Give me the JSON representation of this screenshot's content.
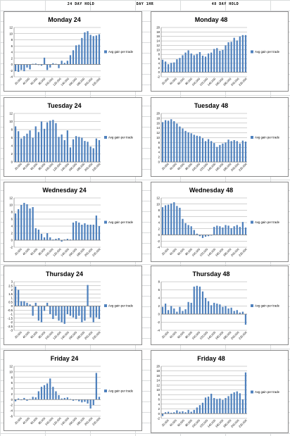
{
  "headers": [
    "24 DAY HOLD",
    "DAY 1HR",
    "48 DAY HOLD"
  ],
  "colors": {
    "bar": "#4f81bd",
    "grid": "#a6a6a6",
    "axis": "#808080",
    "text": "#000000"
  },
  "chart_data": [
    {
      "type": "bar",
      "title": "Monday 24",
      "legend": "Avg gain per trade",
      "legend_position": "right",
      "ylim": [
        -4,
        12
      ],
      "ytick_step": 2,
      "grid": true,
      "xticks": [
        "20,000",
        "40,000",
        "60,000",
        "80,000",
        "100,000",
        "120,000",
        "140,000",
        "160,000",
        "180,000",
        "200,000",
        "220,000"
      ],
      "values": [
        -2.2,
        -2.4,
        -1.8,
        -2.2,
        -1.0,
        -1.6,
        0.2,
        0.3,
        -0.2,
        -0.4,
        2.2,
        -1.8,
        -1.0,
        0.4,
        0.2,
        -1.2,
        1.2,
        0.5,
        1.2,
        3.0,
        4.6,
        6.2,
        6.4,
        8.6,
        10.4,
        10.8,
        9.6,
        9.2,
        9.4,
        9.8
      ]
    },
    {
      "type": "bar",
      "title": "Monday 48",
      "legend": "Avg gain per trade",
      "legend_position": "right",
      "ylim": [
        -2,
        20
      ],
      "ytick_step": 2,
      "grid": true,
      "xticks": [
        "20,000",
        "40,000",
        "60,000",
        "80,000",
        "100,000",
        "120,000",
        "140,000",
        "160,000",
        "180,000",
        "200,000",
        "220,000"
      ],
      "values": [
        5.6,
        4.8,
        3.6,
        4.2,
        4.4,
        5.8,
        6.4,
        7.6,
        8.8,
        9.8,
        8.4,
        7.6,
        8.2,
        9.0,
        7.4,
        7.0,
        8.4,
        8.8,
        10.4,
        10.8,
        9.6,
        10.0,
        12.0,
        13.4,
        13.6,
        15.4,
        14.2,
        16.0,
        16.6,
        16.6
      ]
    },
    {
      "type": "bar",
      "title": "Tuesday 24",
      "legend": "Avg gain per trade",
      "legend_position": "right",
      "ylim": [
        0,
        12
      ],
      "ytick_step": 2,
      "grid": true,
      "xticks": [
        "20,000",
        "40,000",
        "60,000",
        "80,000",
        "100,000",
        "120,000",
        "140,000",
        "160,000",
        "180,000",
        "200,000",
        "220,000"
      ],
      "values": [
        8.8,
        7.6,
        5.8,
        6.4,
        7.0,
        7.8,
        6.0,
        8.8,
        7.4,
        10.0,
        8.2,
        9.8,
        10.2,
        10.4,
        9.6,
        6.2,
        6.8,
        5.4,
        7.8,
        3.6,
        5.6,
        6.4,
        6.2,
        6.0,
        5.2,
        5.0,
        3.8,
        3.4,
        5.8,
        5.4
      ]
    },
    {
      "type": "bar",
      "title": "Tuesday 48",
      "legend": "Avg gain per trade",
      "legend_position": "right",
      "ylim": [
        0,
        20
      ],
      "ytick_step": 2,
      "grid": true,
      "xticks": [
        "20,000",
        "40,000",
        "60,000",
        "80,000",
        "100,000",
        "120,000",
        "140,000",
        "160,000",
        "180,000",
        "200,000",
        "220,000"
      ],
      "values": [
        16.4,
        17.2,
        17.0,
        17.6,
        16.8,
        15.8,
        14.6,
        13.8,
        12.8,
        12.2,
        11.8,
        11.2,
        10.8,
        10.6,
        9.8,
        8.6,
        9.4,
        8.6,
        7.8,
        6.2,
        7.0,
        7.6,
        8.0,
        9.2,
        8.6,
        9.0,
        8.6,
        7.6,
        8.8,
        8.4
      ]
    },
    {
      "type": "bar",
      "title": "Wednesday 24",
      "legend": "Avg gain per trade",
      "legend_position": "right",
      "ylim": [
        -2,
        12
      ],
      "ytick_step": 2,
      "grid": true,
      "xticks": [
        "20,000",
        "40,000",
        "60,000",
        "80,000",
        "100,000",
        "120,000",
        "140,000",
        "160,000",
        "180,000",
        "200,000",
        "220,000"
      ],
      "values": [
        7.6,
        8.8,
        10.0,
        10.6,
        10.2,
        9.0,
        9.4,
        3.4,
        3.0,
        1.8,
        0.8,
        2.0,
        0.8,
        0.2,
        0.4,
        0.6,
        -0.4,
        0.2,
        0.4,
        0.2,
        5.0,
        5.4,
        5.0,
        4.4,
        4.8,
        4.4,
        4.4,
        4.4,
        7.0,
        4.0
      ]
    },
    {
      "type": "bar",
      "title": "Wednesday 48",
      "legend": "Avg gain per trade",
      "legend_position": "right",
      "ylim": [
        -4,
        12
      ],
      "ytick_step": 2,
      "grid": true,
      "xticks": [
        "20,000",
        "40,000",
        "60,000",
        "80,000",
        "100,000",
        "120,000",
        "140,000",
        "160,000",
        "180,000",
        "200,000",
        "220,000"
      ],
      "values": [
        9.0,
        9.6,
        9.8,
        10.2,
        10.6,
        9.4,
        8.8,
        5.2,
        3.8,
        3.2,
        2.8,
        1.6,
        0.4,
        -0.4,
        -1.0,
        -0.6,
        -0.4,
        -0.2,
        2.6,
        3.0,
        2.8,
        2.4,
        3.2,
        3.0,
        2.2,
        2.8,
        3.2,
        2.6,
        4.2,
        2.4
      ]
    },
    {
      "type": "bar",
      "title": "Thursday 24",
      "legend": "Avg gain per trade",
      "legend_position": "right",
      "ylim": [
        -3,
        3
      ],
      "ytick_step": 0.5,
      "grid": true,
      "xticks": [
        "20,000",
        "40,000",
        "60,000",
        "80,000",
        "100,000",
        "120,000",
        "140,000",
        "160,000",
        "180,000",
        "200,000",
        "220,000"
      ],
      "values": [
        2.4,
        2.0,
        0.6,
        0.6,
        0.4,
        0.2,
        -1.2,
        0.4,
        -1.8,
        -2.0,
        -0.6,
        0.4,
        -1.0,
        -1.6,
        -1.2,
        -1.8,
        -2.0,
        -2.2,
        -1.0,
        -1.2,
        -1.4,
        -1.6,
        -1.2,
        -2.0,
        -1.8,
        2.6,
        -1.4,
        -2.0,
        -1.4,
        -1.6
      ]
    },
    {
      "type": "bar",
      "title": "Thursday 48",
      "legend": "Avg gain per trade",
      "legend_position": "right",
      "ylim": [
        -4,
        8
      ],
      "ytick_step": 2,
      "grid": true,
      "xticks": [
        "20,000",
        "40,000",
        "60,000",
        "80,000",
        "100,000",
        "120,000",
        "140,000",
        "160,000",
        "180,000",
        "200,000",
        "220,000"
      ],
      "values": [
        1.8,
        2.6,
        1.0,
        2.0,
        1.4,
        0.6,
        1.8,
        0.8,
        1.2,
        3.0,
        2.8,
        6.8,
        7.0,
        6.8,
        5.6,
        4.0,
        3.2,
        2.2,
        2.8,
        2.6,
        2.4,
        1.8,
        2.0,
        1.4,
        1.6,
        0.8,
        1.0,
        0.4,
        0.6,
        -2.6
      ]
    },
    {
      "type": "bar",
      "title": "Friday 24",
      "legend": "Avg gain per trade",
      "legend_position": "right",
      "ylim": [
        -6,
        12
      ],
      "ytick_step": 2,
      "grid": true,
      "xticks": [
        "20,000",
        "40,000",
        "60,000",
        "80,000",
        "100,000",
        "120,000",
        "140,000",
        "160,000",
        "180,000",
        "200,000",
        "220,000"
      ],
      "values": [
        -0.6,
        0.4,
        -0.2,
        0.6,
        -0.4,
        0.2,
        1.0,
        0.8,
        3.0,
        4.6,
        5.2,
        5.8,
        7.6,
        4.6,
        3.0,
        1.6,
        0.4,
        0.6,
        0.8,
        0.2,
        -0.4,
        -0.2,
        -0.6,
        -1.0,
        -0.8,
        -1.4,
        -3.2,
        -2.0,
        9.6,
        1.0
      ]
    },
    {
      "type": "bar",
      "title": "Friday 48",
      "legend": "Avg gain per trade",
      "legend_position": "right",
      "ylim": [
        -2,
        20
      ],
      "ytick_step": 2,
      "grid": true,
      "xticks": [
        "20,000",
        "40,000",
        "60,000",
        "80,000",
        "100,000",
        "120,000",
        "140,000",
        "160,000",
        "180,000",
        "200,000",
        "220,000"
      ],
      "values": [
        -1.0,
        0.6,
        0.8,
        0.4,
        0.6,
        1.4,
        0.8,
        1.0,
        0.6,
        1.6,
        0.8,
        1.6,
        2.6,
        3.6,
        4.6,
        6.8,
        7.2,
        8.4,
        6.6,
        6.2,
        6.4,
        5.8,
        6.6,
        7.4,
        8.4,
        9.0,
        9.4,
        8.6,
        6.0,
        17.4
      ]
    }
  ]
}
